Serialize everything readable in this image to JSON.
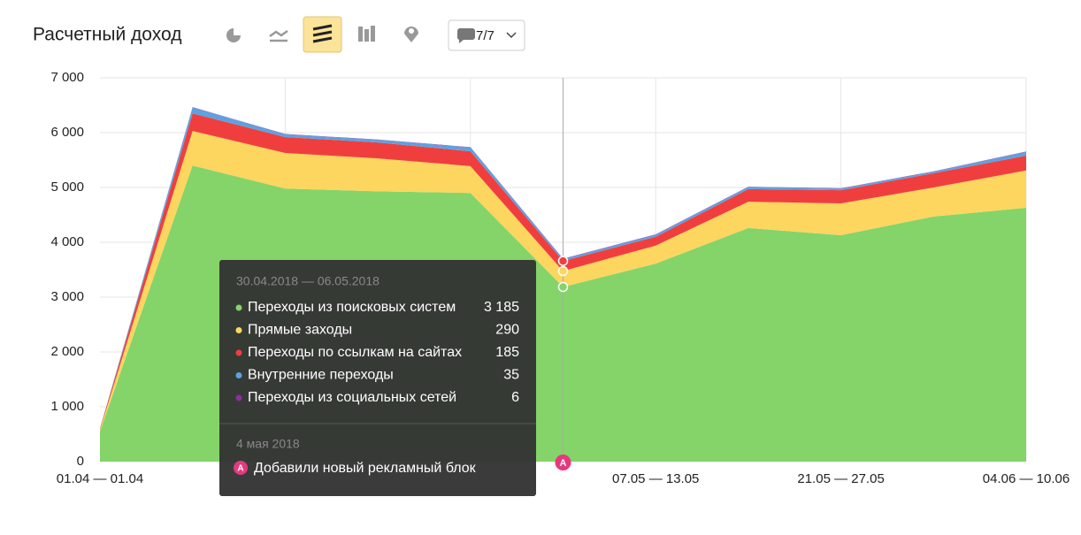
{
  "chart_data": {
    "type": "stacked-area",
    "title": "Расчетный доход",
    "toolbar": {
      "counter": "7/7"
    },
    "categories": [
      "01.04 — 01.04",
      null,
      null,
      null,
      null,
      null,
      "07.05 — 13.05",
      null,
      "21.05 — 27.05",
      null,
      "04.06 — 10.06"
    ],
    "series": [
      {
        "name": "Переходы из поисковых систем",
        "color": "#84d46a",
        "values": [
          550,
          5400,
          4980,
          4930,
          4900,
          3185,
          3610,
          4260,
          4130,
          4470,
          4630
        ],
        "value_labels": [
          null,
          null,
          null,
          null,
          null,
          "3 185",
          null,
          null,
          null,
          null,
          null
        ]
      },
      {
        "name": "Прямые заходы",
        "color": "#fcd65f",
        "values": [
          30,
          630,
          650,
          600,
          490,
          290,
          330,
          480,
          580,
          530,
          680
        ]
      },
      {
        "name": "Переходы по ссылкам на сайтах",
        "color": "#f03e3e",
        "values": [
          20,
          320,
          290,
          290,
          270,
          185,
          160,
          230,
          240,
          260,
          270
        ]
      },
      {
        "name": "Внутренние переходы",
        "color": "#5ba3e0",
        "values": [
          5,
          110,
          50,
          50,
          70,
          35,
          40,
          40,
          30,
          30,
          70
        ]
      },
      {
        "name": "Переходы из социальных сетей",
        "color": "#8e2da0",
        "values": [
          0,
          5,
          5,
          5,
          5,
          6,
          5,
          5,
          5,
          5,
          5
        ]
      }
    ],
    "ylim": [
      0,
      7000
    ],
    "yticks": [
      0,
      {
        "value": 1000,
        "label": "1 000"
      },
      {
        "value": 2000,
        "label": "2 000"
      },
      {
        "value": 3000,
        "label": "3 000"
      },
      {
        "value": 4000,
        "label": "4 000"
      },
      {
        "value": 5000,
        "label": "5 000"
      },
      {
        "value": 6000,
        "label": "6 000"
      },
      {
        "value": 7000,
        "label": "7 000"
      }
    ],
    "grid": true,
    "tooltip": {
      "title": "30.04.2018 — 06.05.2018"
    },
    "annotation": {
      "marker": "A",
      "date": "4 мая 2018",
      "text": "Добавили новый рекламный блок"
    }
  }
}
